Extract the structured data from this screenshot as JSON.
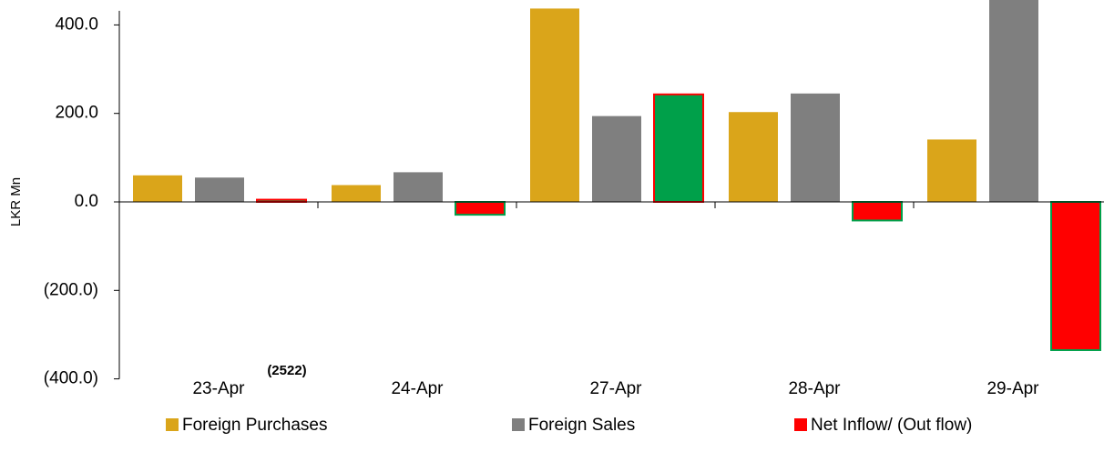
{
  "chart_data": {
    "type": "bar",
    "y_label": "LKR Mn",
    "annotation": "(2522)",
    "categories": [
      "23-Apr",
      "24-Apr",
      "27-Apr",
      "28-Apr",
      "29-Apr"
    ],
    "series": [
      {
        "name": "Foreign Purchases",
        "color": "#daa51a",
        "values": [
          60,
          38,
          437,
          203,
          141
        ]
      },
      {
        "name": "Foreign Sales",
        "color": "#7f7f7f",
        "values": [
          55,
          67,
          194,
          245,
          476
        ]
      },
      {
        "name": "Net Inflow/ (Out flow)",
        "color": "#ff0000",
        "positive_color": "#00a04a",
        "values": [
          5,
          -29,
          243,
          -42,
          -335
        ]
      }
    ],
    "ylim": [
      -400,
      436
    ],
    "yticks": [
      {
        "value": 400,
        "label": "400.0"
      },
      {
        "value": 200,
        "label": "200.0"
      },
      {
        "value": 0,
        "label": "0.0"
      },
      {
        "value": -200,
        "label": "(200.0)"
      },
      {
        "value": -400,
        "label": "(400.0)"
      }
    ],
    "legend": "bottom"
  }
}
